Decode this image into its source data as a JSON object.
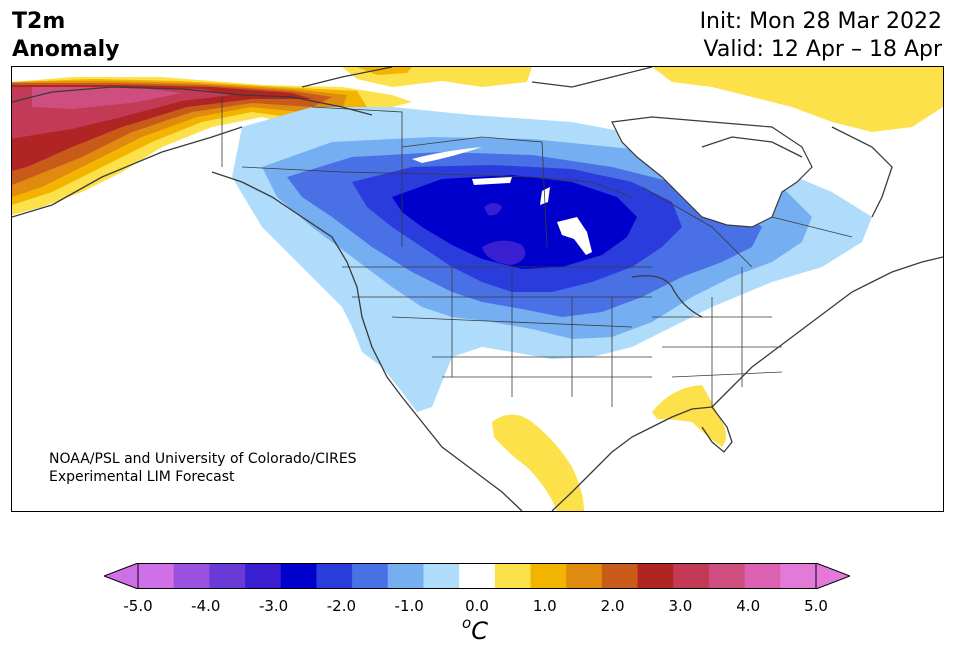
{
  "header": {
    "title_line1": "T2m",
    "title_line2": "Anomaly",
    "init": "Init: Mon 28 Mar 2022",
    "valid": "Valid: 12 Apr – 18 Apr"
  },
  "credit": {
    "line1": "NOAA/PSL and University of Colorado/CIRES",
    "line2": "Experimental LIM Forecast"
  },
  "colorbar": {
    "unit_sup": "o",
    "unit": "C",
    "tick_labels": [
      "-5.0",
      "-4.0",
      "-3.0",
      "-2.0",
      "-1.0",
      "0.0",
      "1.0",
      "2.0",
      "3.0",
      "4.0",
      "5.0"
    ],
    "colors": [
      "#d070e8",
      "#9b50e0",
      "#6a3ad8",
      "#3a1fd0",
      "#0000cc",
      "#2a3ddc",
      "#4a70e6",
      "#76aef2",
      "#aedcfa",
      "#ffffff",
      "#fde14a",
      "#f2b400",
      "#e08a10",
      "#c85a1a",
      "#b02424",
      "#c23a55",
      "#cf4e80",
      "#da62b0",
      "#e47ad8"
    ],
    "extend_low_color": "#d070e8",
    "extend_high_color": "#e47ad8"
  },
  "map": {
    "region": "North America",
    "variable": "2m temperature anomaly",
    "colors": {
      "coast": "#3a3a3a",
      "land": "#ffffff"
    }
  }
}
